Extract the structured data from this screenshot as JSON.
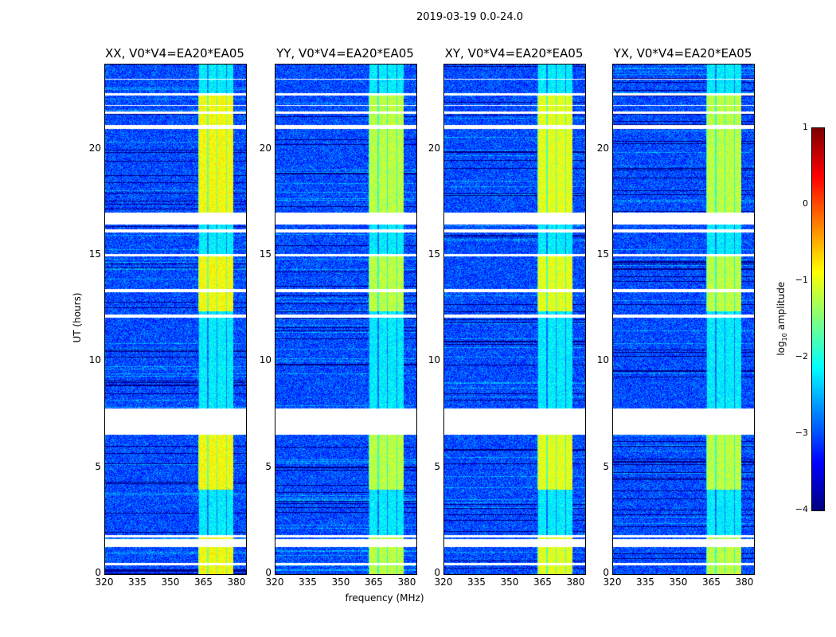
{
  "chart_data": {
    "type": "heatmap",
    "title": "2019-03-19 0.0-24.0",
    "xlabel": "frequency (MHz)",
    "ylabel": "UT (hours)",
    "xlim": [
      320,
      384
    ],
    "ylim": [
      0,
      24
    ],
    "xticks": [
      "320",
      "335",
      "350",
      "365",
      "380"
    ],
    "yticks": [
      "0",
      "5",
      "10",
      "15",
      "20"
    ],
    "panels": [
      {
        "title": "XX, V0*V4=EA20*EA05",
        "band_level": -0.9
      },
      {
        "title": "YY, V0*V4=EA20*EA05",
        "band_level": -1.2
      },
      {
        "title": "XY, V0*V4=EA20*EA05",
        "band_level": -1.0
      },
      {
        "title": "YX, V0*V4=EA20*EA05",
        "band_level": -1.2
      }
    ],
    "background_level": -3.0,
    "signal_band_mhz": [
      362,
      378
    ],
    "flagged_hours": [
      [
        0.45,
        0.55
      ],
      [
        1.3,
        1.65
      ],
      [
        1.75,
        1.85
      ],
      [
        6.6,
        7.8
      ],
      [
        12.1,
        12.25
      ],
      [
        13.3,
        13.45
      ],
      [
        15.0,
        15.1
      ],
      [
        16.1,
        16.25
      ],
      [
        16.5,
        17.05
      ],
      [
        21.0,
        21.15
      ],
      [
        21.7,
        21.8
      ],
      [
        22.05,
        22.12
      ],
      [
        22.55,
        22.65
      ],
      [
        23.3,
        23.35
      ]
    ],
    "colorbar": {
      "label": "log10 amplitude",
      "label_main": "log",
      "label_sub": "10",
      "label_rest": " amplitude",
      "range": [
        -4,
        1
      ],
      "ticks": [
        "1",
        "0",
        "−1",
        "−2",
        "−3",
        "−4"
      ],
      "colormap": "jet"
    }
  }
}
